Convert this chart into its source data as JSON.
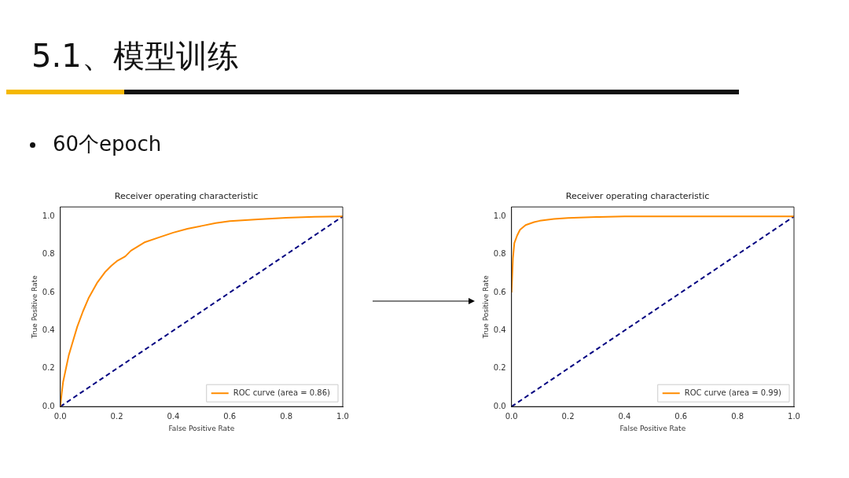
{
  "chart_data": [
    {
      "type": "line",
      "title": "Receiver operating characteristic",
      "xlabel": "False Positive Rate",
      "ylabel": "True Positive Rate",
      "annotations": [
        "5.1、模型训练",
        "60个epoch"
      ],
      "xlim": [
        0,
        1
      ],
      "ylim": [
        0,
        1.05
      ],
      "xticks": [
        {
          "value": 0,
          "label": "0.0"
        },
        {
          "value": 0.2,
          "label": "0.2"
        },
        {
          "value": 0.4,
          "label": "0.4"
        },
        {
          "value": 0.6,
          "label": "0.6"
        },
        {
          "value": 0.8,
          "label": "0.8"
        },
        {
          "value": 1,
          "label": "1.0"
        }
      ],
      "yticks": [
        {
          "value": 0,
          "label": "0.0"
        },
        {
          "value": 0.2,
          "label": "0.2"
        },
        {
          "value": 0.4,
          "label": "0.4"
        },
        {
          "value": 0.6,
          "label": "0.6"
        },
        {
          "value": 0.8,
          "label": "0.8"
        },
        {
          "value": 1,
          "label": "1.0"
        }
      ],
      "grid": false,
      "legend": "bottom right",
      "marker": "none",
      "series": [
        {
          "name": "ROC curve (area = 0.86)",
          "color": "#ff8c00",
          "line_style": "solid",
          "x": [
            0,
            0.005,
            0.01,
            0.02,
            0.03,
            0.04,
            0.06,
            0.08,
            0.1,
            0.13,
            0.16,
            0.18,
            0.2,
            0.23,
            0.25,
            0.3,
            0.35,
            0.4,
            0.45,
            0.5,
            0.55,
            0.6,
            0.7,
            0.8,
            0.9,
            1
          ],
          "values": [
            0,
            0.07,
            0.13,
            0.2,
            0.27,
            0.32,
            0.42,
            0.5,
            0.57,
            0.65,
            0.71,
            0.74,
            0.765,
            0.79,
            0.82,
            0.865,
            0.89,
            0.915,
            0.935,
            0.95,
            0.965,
            0.975,
            0.985,
            0.993,
            0.998,
            1
          ]
        },
        {
          "color": "#000080",
          "line_style": "dashed",
          "x": [
            0,
            1
          ],
          "values": [
            0,
            1
          ]
        }
      ]
    },
    {
      "type": "line",
      "title": "Receiver operating characteristic",
      "xlabel": "False Positive Rate",
      "ylabel": "True Positive Rate",
      "xlim": [
        0,
        1
      ],
      "ylim": [
        0,
        1.05
      ],
      "xticks": [
        {
          "value": 0,
          "label": "0.0"
        },
        {
          "value": 0.2,
          "label": "0.2"
        },
        {
          "value": 0.4,
          "label": "0.4"
        },
        {
          "value": 0.6,
          "label": "0.6"
        },
        {
          "value": 0.8,
          "label": "0.8"
        },
        {
          "value": 1,
          "label": "1.0"
        }
      ],
      "yticks": [
        {
          "value": 0,
          "label": "0.0"
        },
        {
          "value": 0.2,
          "label": "0.2"
        },
        {
          "value": 0.4,
          "label": "0.4"
        },
        {
          "value": 0.6,
          "label": "0.6"
        },
        {
          "value": 0.8,
          "label": "0.8"
        },
        {
          "value": 1,
          "label": "1.0"
        }
      ],
      "grid": false,
      "legend": "bottom right",
      "marker": "none",
      "series": [
        {
          "name": "ROC curve (area = 0.99)",
          "color": "#ff8c00",
          "line_style": "solid",
          "x": [
            0,
            0.005,
            0.01,
            0.02,
            0.03,
            0.05,
            0.08,
            0.1,
            0.15,
            0.2,
            0.3,
            0.4,
            1
          ],
          "values": [
            0.6,
            0.78,
            0.86,
            0.9,
            0.93,
            0.955,
            0.97,
            0.977,
            0.987,
            0.992,
            0.997,
            1,
            1
          ]
        },
        {
          "color": "#000080",
          "line_style": "dashed",
          "x": [
            0,
            1
          ],
          "values": [
            0,
            1
          ]
        }
      ]
    }
  ]
}
